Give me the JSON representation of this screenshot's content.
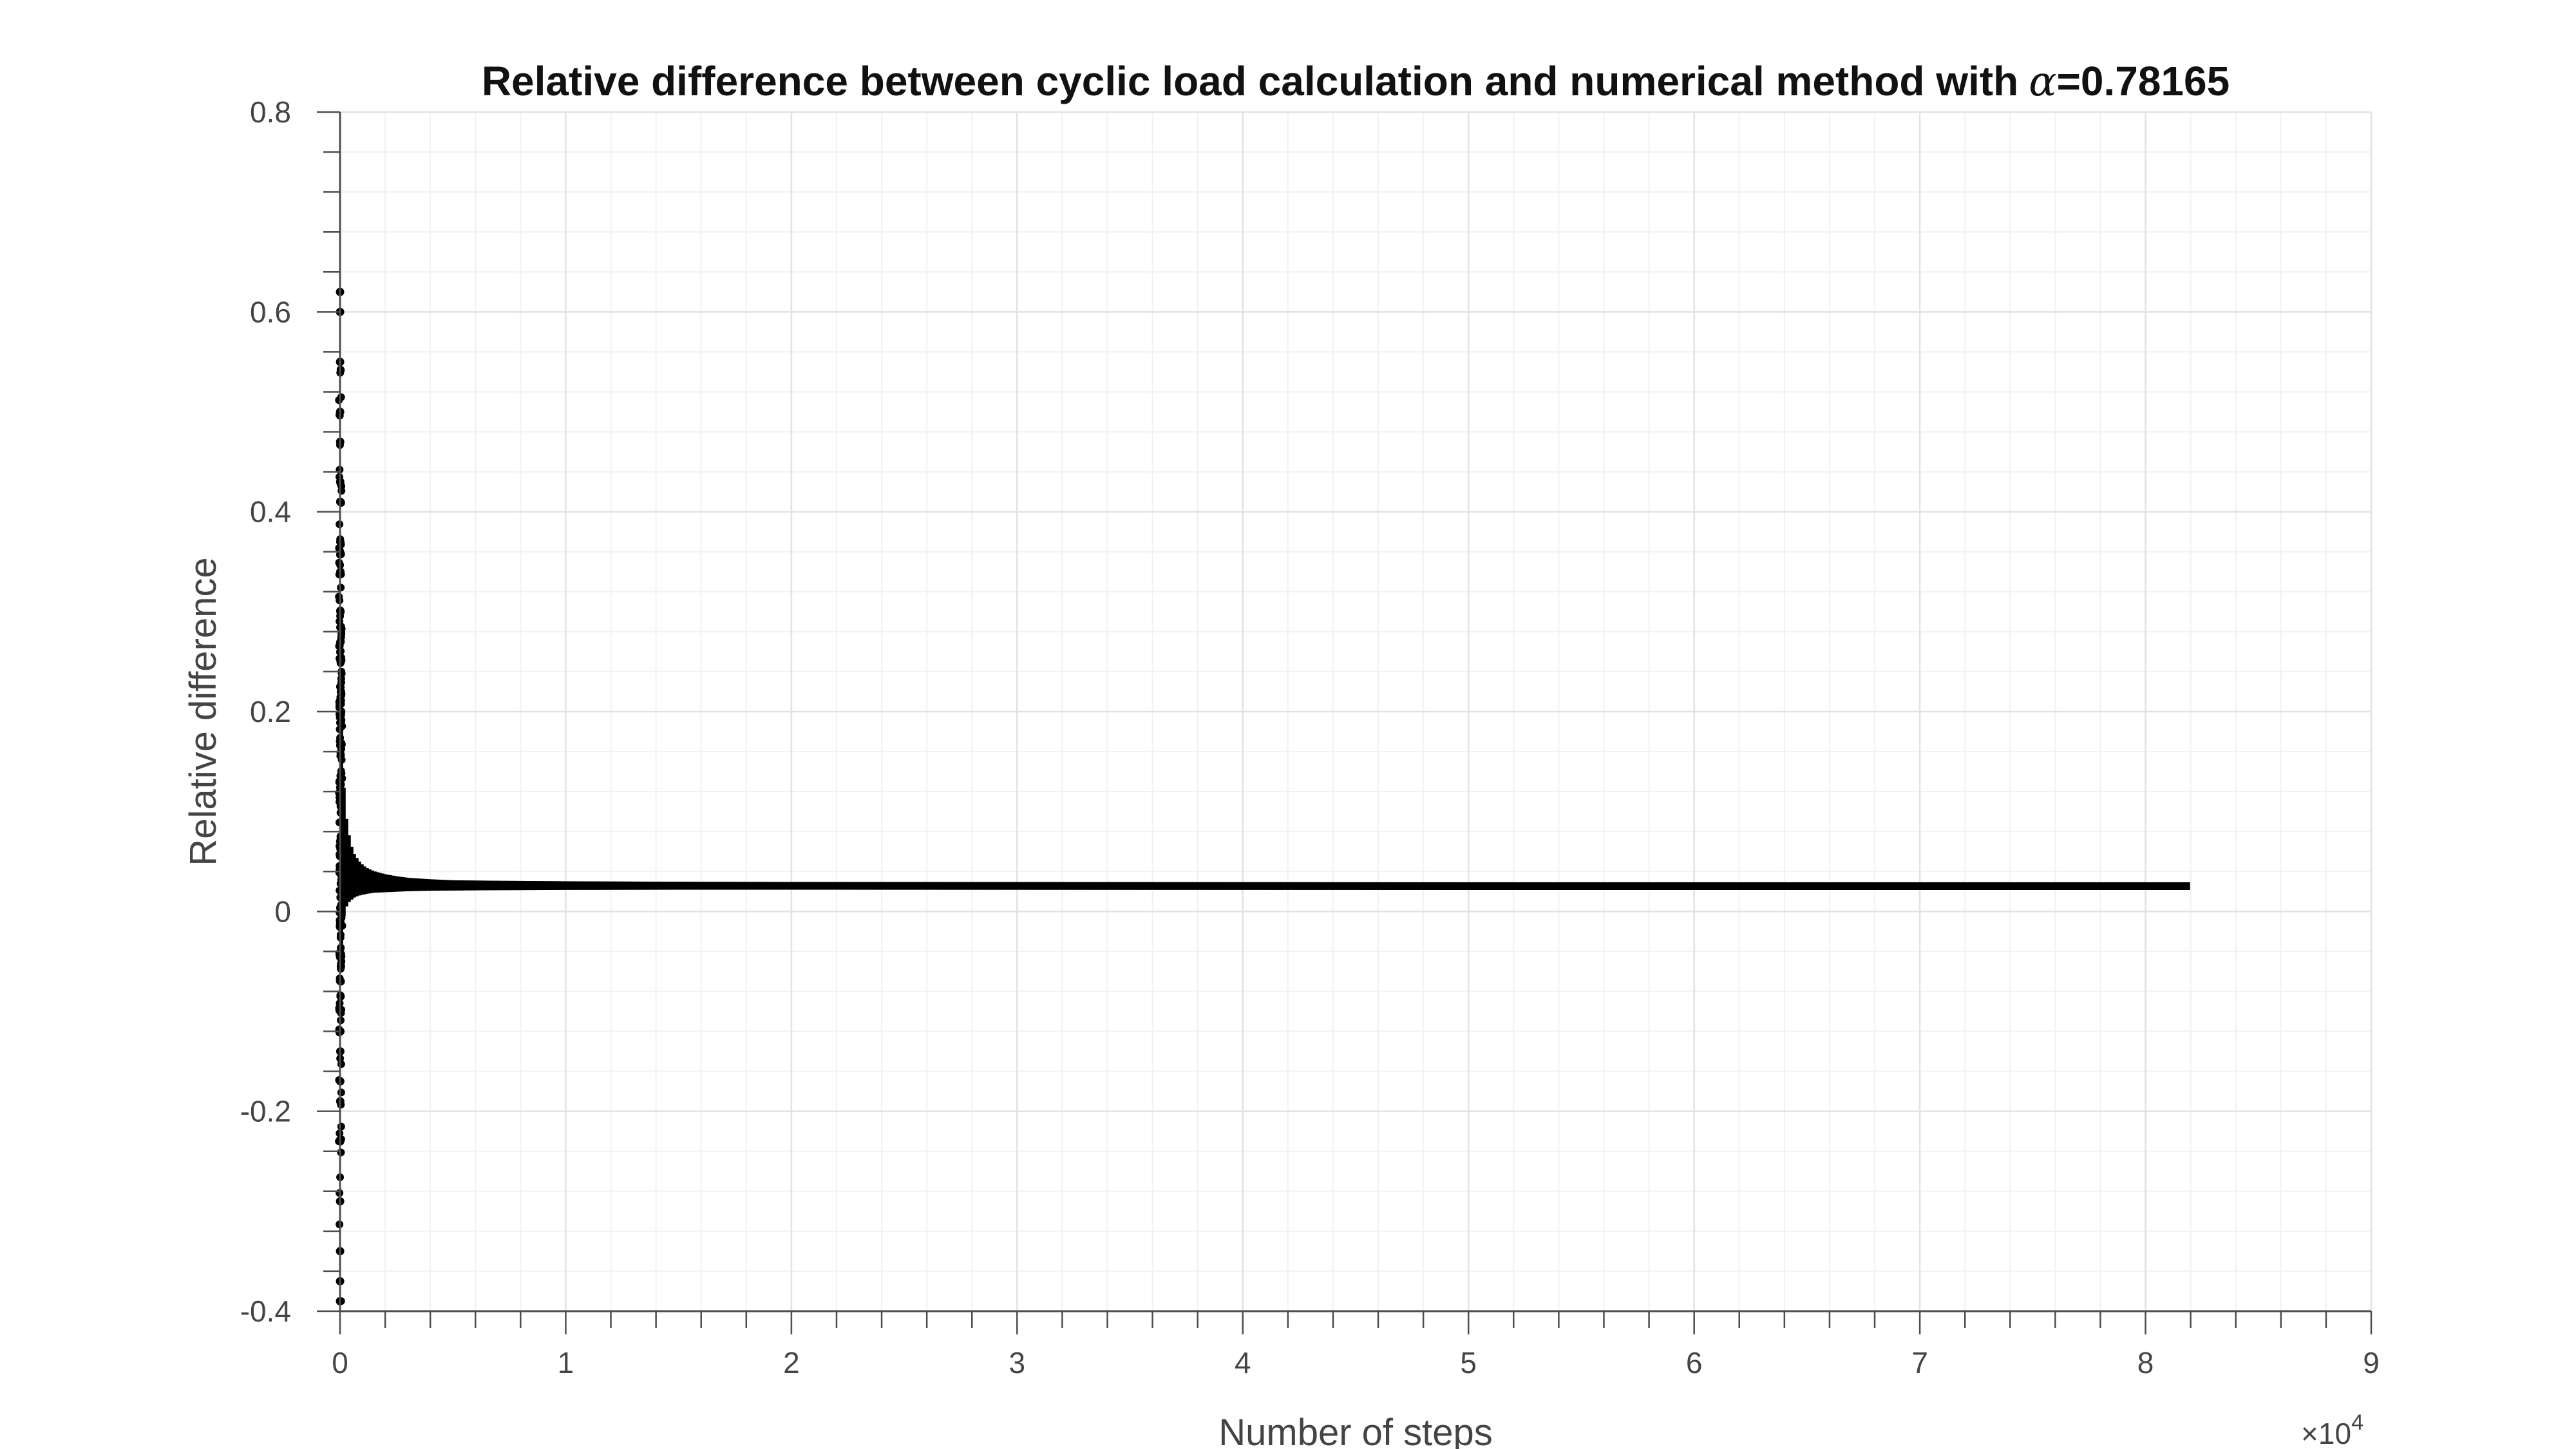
{
  "chart_data": {
    "type": "scatter",
    "title": "Relative difference between cyclic load calculation and numerical method with",
    "title_symbol": "α",
    "title_value": "=0.78165",
    "xlabel": "Number of steps",
    "ylabel": "Relative difference",
    "x_exponent_label": "×10",
    "x_exponent_power": "4",
    "xlim": [
      0,
      9
    ],
    "ylim": [
      -0.4,
      0.8
    ],
    "x_ticks": [
      0,
      1,
      2,
      3,
      4,
      5,
      6,
      7,
      8,
      9
    ],
    "x_tick_labels": [
      "0",
      "1",
      "2",
      "3",
      "4",
      "5",
      "6",
      "7",
      "8",
      "9"
    ],
    "y_ticks": [
      -0.4,
      -0.2,
      0,
      0.2,
      0.4,
      0.6,
      0.8
    ],
    "y_tick_labels": [
      "-0.4",
      "-0.2",
      "0",
      "0.2",
      "0.4",
      "0.6",
      "0.8"
    ],
    "grid": true,
    "minor_grid": true,
    "marker_color": "#000000",
    "series": [
      {
        "x": [
          0.0001,
          0.0002,
          0.0003,
          0.0004,
          0.0006,
          0.0008,
          0.001,
          0.0012,
          0.0015,
          0.002,
          0.0025,
          0.003,
          0.004,
          0.005,
          0.006,
          0.008,
          0.01,
          0.012,
          0.015,
          0.02,
          0.025,
          0.03,
          0.04,
          0.05,
          0.06,
          0.08,
          0.1,
          0.12,
          0.15,
          0.2,
          0.25,
          0.3,
          0.4,
          0.5,
          0.7,
          1.0,
          1.5,
          2.0,
          3.0,
          4.0,
          5.0,
          6.0,
          7.0,
          8.0,
          8.2
        ],
        "upper": [
          0.62,
          0.6,
          0.55,
          0.5,
          0.47,
          0.43,
          0.41,
          0.37,
          0.34,
          0.3,
          0.27,
          0.25,
          0.22,
          0.2,
          0.185,
          0.17,
          0.155,
          0.14,
          0.125,
          0.11,
          0.095,
          0.085,
          0.072,
          0.062,
          0.055,
          0.048,
          0.043,
          0.04,
          0.037,
          0.034,
          0.032,
          0.0305,
          0.029,
          0.028,
          0.0275,
          0.027,
          0.0265,
          0.0263,
          0.0262,
          0.0261,
          0.026,
          0.026,
          0.026,
          0.026,
          0.026
        ],
        "lower": [
          -0.39,
          -0.37,
          -0.34,
          -0.29,
          -0.23,
          -0.19,
          -0.17,
          -0.14,
          -0.12,
          -0.1,
          -0.085,
          -0.07,
          -0.055,
          -0.045,
          -0.035,
          -0.025,
          -0.015,
          -0.008,
          -0.003,
          0.002,
          0.006,
          0.01,
          0.013,
          0.015,
          0.017,
          0.019,
          0.02,
          0.021,
          0.022,
          0.0225,
          0.023,
          0.0235,
          0.024,
          0.0242,
          0.0245,
          0.0248,
          0.025,
          0.025,
          0.0251,
          0.0251,
          0.0252,
          0.0252,
          0.0252,
          0.0252,
          0.0252
        ]
      }
    ]
  }
}
